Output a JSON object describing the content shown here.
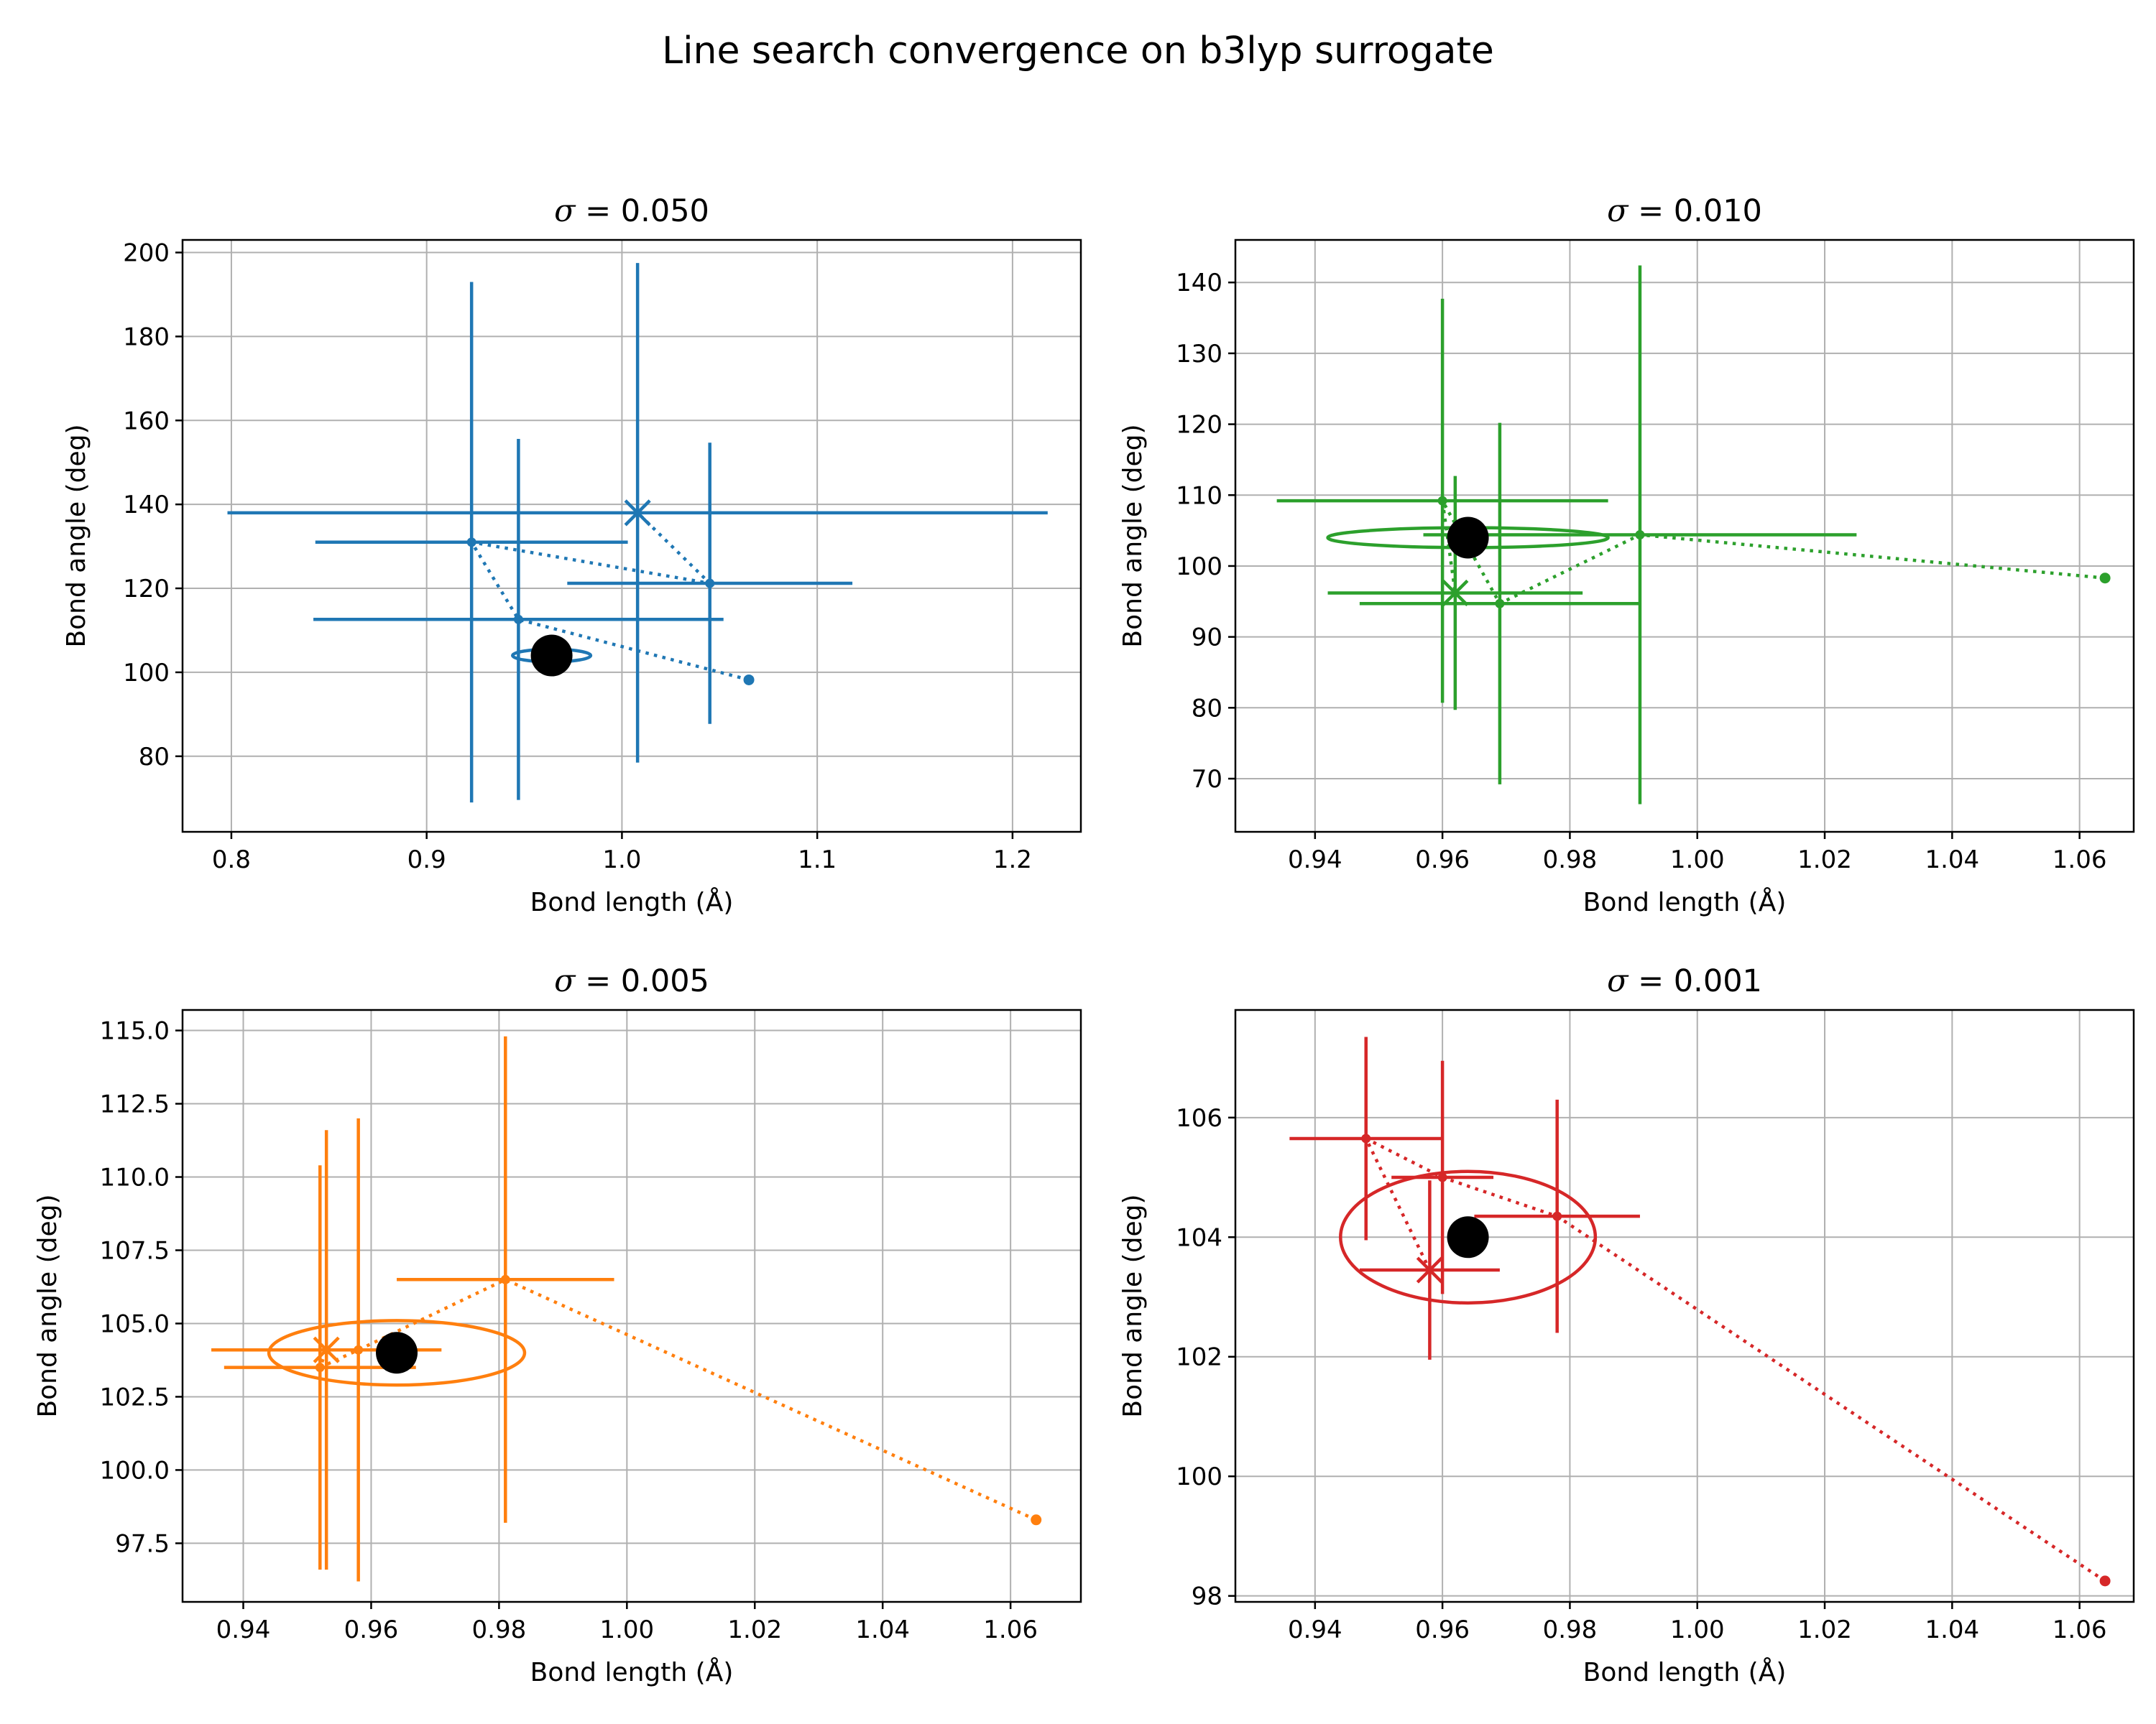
{
  "figure_title": "Line search convergence on b3lyp surrogate",
  "chart_data": [
    {
      "type": "scatter",
      "title_sym": "σ",
      "title_val": " = 0.050",
      "color": "#1f77b4",
      "xlabel": "Bond length (Å)",
      "ylabel": "Bond angle (deg)",
      "xlim": [
        0.775,
        1.235
      ],
      "ylim": [
        62,
        203
      ],
      "xticks": [
        0.8,
        0.9,
        1.0,
        1.1,
        1.2
      ],
      "yticks": [
        80,
        100,
        120,
        140,
        160,
        180,
        200
      ],
      "xtick_decimals": 1,
      "ytick_decimals": 0,
      "grid": true,
      "start": {
        "x": 1.065,
        "y": 98.2
      },
      "iterates": [
        {
          "x": 0.947,
          "y": 112.6,
          "xerr": 0.105,
          "yerr": 43
        },
        {
          "x": 0.923,
          "y": 131.0,
          "xerr": 0.08,
          "yerr": 62
        },
        {
          "x": 1.045,
          "y": 121.2,
          "xerr": 0.073,
          "yerr": 33.5
        },
        {
          "x": 1.008,
          "y": 138.0,
          "xerr": 0.21,
          "yerr": 59.5
        }
      ],
      "final_marker_index": 3,
      "optimum": {
        "x": 0.964,
        "y": 104.0
      },
      "ellipse": {
        "cx": 0.964,
        "cy": 104.0,
        "rx": 0.02,
        "ry": 1.5
      }
    },
    {
      "type": "scatter",
      "title_sym": "σ",
      "title_val": " = 0.010",
      "color": "#2ca02c",
      "xlabel": "Bond length (Å)",
      "ylabel": "Bond angle (deg)",
      "xlim": [
        0.9275,
        1.0685
      ],
      "ylim": [
        62.5,
        146
      ],
      "xticks": [
        0.94,
        0.96,
        0.98,
        1.0,
        1.02,
        1.04,
        1.06
      ],
      "yticks": [
        70,
        80,
        90,
        100,
        110,
        120,
        130,
        140
      ],
      "xtick_decimals": 2,
      "ytick_decimals": 0,
      "grid": true,
      "start": {
        "x": 1.064,
        "y": 98.3
      },
      "iterates": [
        {
          "x": 0.991,
          "y": 104.4,
          "xerr": 0.034,
          "yerr": 38
        },
        {
          "x": 0.969,
          "y": 94.7,
          "xerr": 0.022,
          "yerr": 25.5
        },
        {
          "x": 0.96,
          "y": 109.2,
          "xerr": 0.026,
          "yerr": 28.5
        },
        {
          "x": 0.962,
          "y": 96.2,
          "xerr": 0.02,
          "yerr": 16.5
        }
      ],
      "final_marker_index": 3,
      "optimum": {
        "x": 0.964,
        "y": 104.0
      },
      "ellipse": {
        "cx": 0.964,
        "cy": 104.0,
        "rx": 0.022,
        "ry": 1.4
      }
    },
    {
      "type": "scatter",
      "title_sym": "σ",
      "title_val": " = 0.005",
      "color": "#ff7f0e",
      "xlabel": "Bond length (Å)",
      "ylabel": "Bond angle (deg)",
      "xlim": [
        0.9305,
        1.071
      ],
      "ylim": [
        95.5,
        115.7
      ],
      "xticks": [
        0.94,
        0.96,
        0.98,
        1.0,
        1.02,
        1.04,
        1.06
      ],
      "yticks": [
        97.5,
        100.0,
        102.5,
        105.0,
        107.5,
        110.0,
        112.5,
        115.0
      ],
      "xtick_decimals": 2,
      "ytick_decimals": 1,
      "grid": true,
      "start": {
        "x": 1.064,
        "y": 98.3
      },
      "iterates": [
        {
          "x": 0.981,
          "y": 106.5,
          "xerr": 0.017,
          "yerr": 8.3
        },
        {
          "x": 0.958,
          "y": 104.1,
          "xerr": 0.008,
          "yerr": 7.9
        },
        {
          "x": 0.952,
          "y": 103.5,
          "xerr": 0.015,
          "yerr": 6.9
        },
        {
          "x": 0.953,
          "y": 104.1,
          "xerr": 0.018,
          "yerr": 7.5
        }
      ],
      "final_marker_index": 3,
      "optimum": {
        "x": 0.964,
        "y": 104.0
      },
      "ellipse": {
        "cx": 0.964,
        "cy": 104.0,
        "rx": 0.02,
        "ry": 1.1
      }
    },
    {
      "type": "scatter",
      "title_sym": "σ",
      "title_val": " = 0.001",
      "color": "#d62728",
      "xlabel": "Bond length (Å)",
      "ylabel": "Bond angle (deg)",
      "xlim": [
        0.9275,
        1.0685
      ],
      "ylim": [
        97.9,
        107.8
      ],
      "xticks": [
        0.94,
        0.96,
        0.98,
        1.0,
        1.02,
        1.04,
        1.06
      ],
      "yticks": [
        98,
        100,
        102,
        104,
        106
      ],
      "xtick_decimals": 2,
      "ytick_decimals": 0,
      "grid": true,
      "start": {
        "x": 1.064,
        "y": 98.25
      },
      "iterates": [
        {
          "x": 0.978,
          "y": 104.35,
          "xerr": 0.013,
          "yerr": 1.95
        },
        {
          "x": 0.96,
          "y": 105.0,
          "xerr": 0.008,
          "yerr": 1.95
        },
        {
          "x": 0.948,
          "y": 105.65,
          "xerr": 0.012,
          "yerr": 1.7
        },
        {
          "x": 0.958,
          "y": 103.45,
          "xerr": 0.011,
          "yerr": 1.5
        }
      ],
      "final_marker_index": 3,
      "optimum": {
        "x": 0.964,
        "y": 104.0
      },
      "ellipse": {
        "cx": 0.964,
        "cy": 104.0,
        "rx": 0.02,
        "ry": 1.1
      }
    }
  ]
}
